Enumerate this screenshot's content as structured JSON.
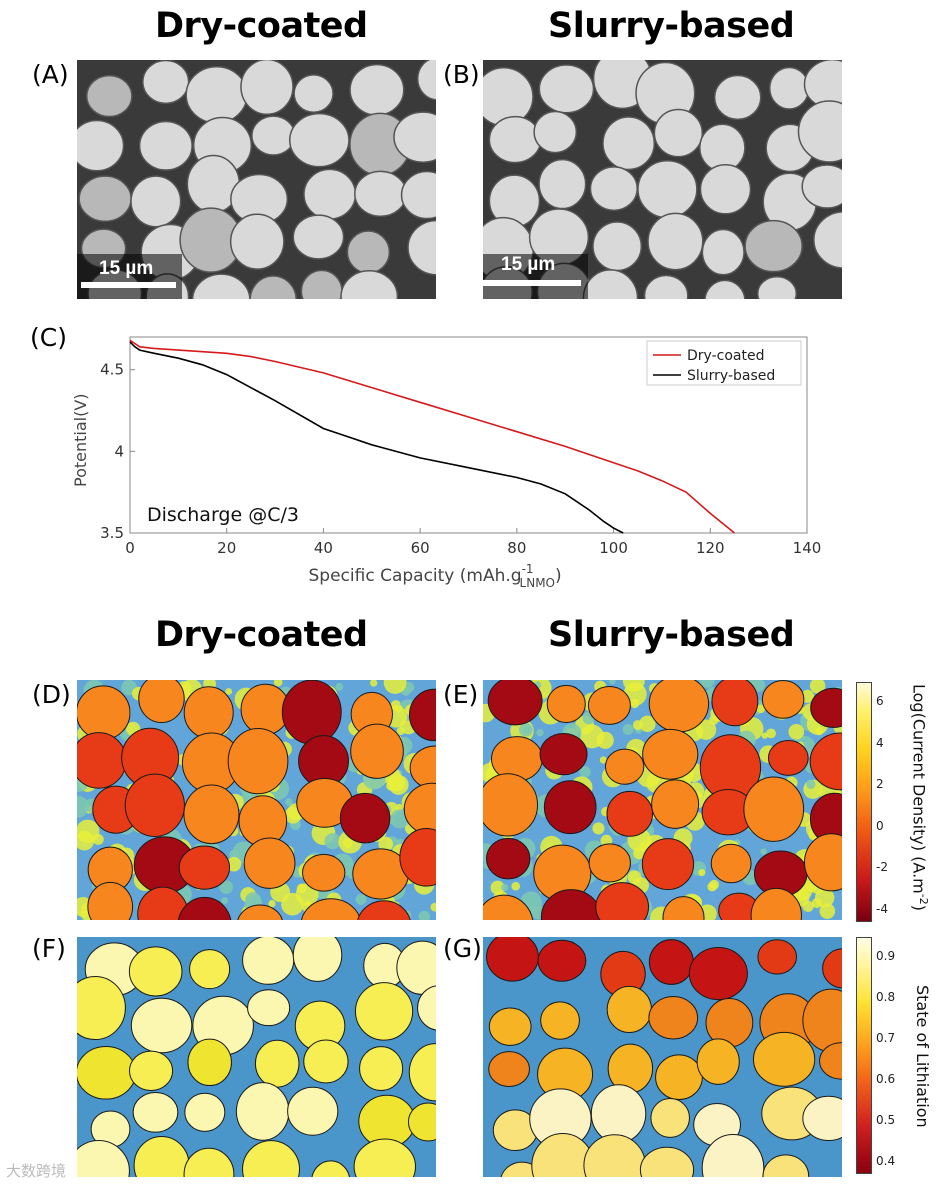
{
  "headings": {
    "top_left": "Dry-coated",
    "top_right": "Slurry-based",
    "mid_left": "Dry-coated",
    "mid_right": "Slurry-based"
  },
  "panel_labels": {
    "A": "(A)",
    "B": "(B)",
    "C": "(C)",
    "D": "(D)",
    "E": "(E)",
    "F": "(F)",
    "G": "(G)"
  },
  "scale_bar": {
    "label": "15 µm"
  },
  "chart_data": {
    "type": "line",
    "title": "",
    "annotation": "Discharge @C/3",
    "xlabel": "Specific Capacity (mAh.g",
    "xlabel_sup": "-1",
    "xlabel_sub": "LNMO",
    "xlabel_end": ")",
    "ylabel": "Potential(V)",
    "xlim": [
      0,
      140
    ],
    "ylim": [
      3.5,
      4.7
    ],
    "xticks": [
      "0",
      "20",
      "40",
      "60",
      "80",
      "100",
      "120",
      "140"
    ],
    "xtick_values": [
      0,
      20,
      40,
      60,
      80,
      100,
      120,
      140
    ],
    "yticks": [
      "3.5",
      "4",
      "4.5"
    ],
    "ytick_values": [
      3.5,
      4.0,
      4.5
    ],
    "legend_position": "top-right",
    "series": [
      {
        "name": "Dry-coated",
        "color": "#d7191c",
        "x": [
          0,
          1,
          2,
          5,
          10,
          20,
          25,
          30,
          40,
          50,
          60,
          70,
          80,
          90,
          100,
          105,
          110,
          115,
          120,
          125
        ],
        "y": [
          4.68,
          4.66,
          4.64,
          4.63,
          4.62,
          4.6,
          4.58,
          4.55,
          4.48,
          4.39,
          4.3,
          4.21,
          4.12,
          4.03,
          3.93,
          3.88,
          3.82,
          3.75,
          3.62,
          3.5
        ]
      },
      {
        "name": "Slurry-based",
        "color": "#000000",
        "x": [
          0,
          1,
          2,
          5,
          10,
          15,
          20,
          30,
          40,
          45,
          50,
          60,
          70,
          80,
          85,
          90,
          95,
          98,
          100,
          102
        ],
        "y": [
          4.67,
          4.64,
          4.62,
          4.6,
          4.57,
          4.53,
          4.47,
          4.31,
          4.14,
          4.09,
          4.04,
          3.96,
          3.9,
          3.84,
          3.8,
          3.74,
          3.64,
          3.57,
          3.53,
          3.5
        ]
      }
    ]
  },
  "colorbars": {
    "current": {
      "label": "Log(Current Density) (A.m",
      "label_sup": "-2",
      "label_end": ")",
      "ticks": [
        "6",
        "4",
        "2",
        "0",
        "-2",
        "-4"
      ]
    },
    "lithiation": {
      "label": "State of Lithiation",
      "ticks": [
        "0.9",
        "0.8",
        "0.7",
        "0.6",
        "0.5",
        "0.4"
      ]
    }
  },
  "watermark": "大数跨境",
  "colors": {
    "sem_particle": "#d8d8d8",
    "sem_background": "#3a3a3a",
    "map_background": "#4a95c9",
    "current_hot": "#ff8c1a",
    "current_low": "#b3001b",
    "electrolyte_high": "#f5f542"
  }
}
